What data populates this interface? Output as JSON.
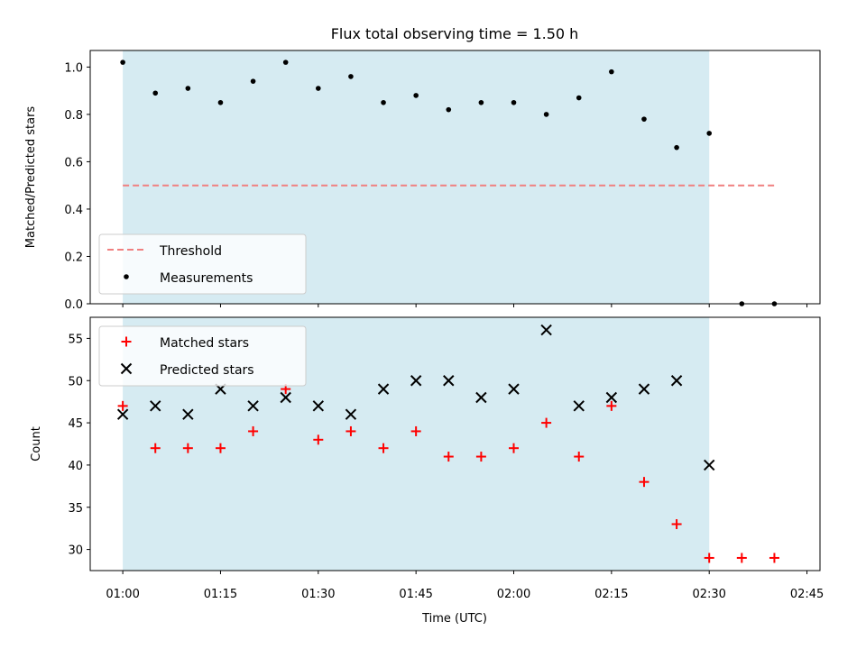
{
  "chart_data": {
    "title": "Flux total observing time = 1.50 h",
    "xlabel": "Time (UTC)",
    "x_ticks": [
      "01:00",
      "01:15",
      "01:30",
      "01:45",
      "02:00",
      "02:15",
      "02:30",
      "02:45"
    ],
    "x_range": [
      "00:55",
      "02:47"
    ],
    "observing_window": [
      "01:00",
      "02:30"
    ],
    "observing_window_color": "#add8e6",
    "panels": [
      {
        "type": "scatter",
        "ylabel": "Matched/Predicted stars",
        "ylim": [
          0.0,
          1.07
        ],
        "y_ticks": [
          "0.0",
          "0.2",
          "0.4",
          "0.6",
          "0.8",
          "1.0"
        ],
        "legend_position": "lower-left",
        "series": [
          {
            "name": "Threshold",
            "style": "dashed-line",
            "color": "#f08080",
            "x": [
              "01:00",
              "02:40"
            ],
            "y": [
              0.5,
              0.5
            ]
          },
          {
            "name": "Measurements",
            "style": "dot",
            "color": "#000000",
            "x": [
              "01:00",
              "01:05",
              "01:10",
              "01:15",
              "01:20",
              "01:25",
              "01:30",
              "01:35",
              "01:40",
              "01:45",
              "01:50",
              "01:55",
              "02:00",
              "02:05",
              "02:10",
              "02:15",
              "02:20",
              "02:25",
              "02:30",
              "02:35",
              "02:40"
            ],
            "y": [
              1.02,
              0.89,
              0.91,
              0.85,
              0.94,
              1.02,
              0.91,
              0.96,
              0.85,
              0.88,
              0.82,
              0.85,
              0.85,
              0.8,
              0.87,
              0.98,
              0.78,
              0.66,
              0.72,
              0.0,
              0.0
            ]
          }
        ]
      },
      {
        "type": "scatter",
        "ylabel": "Count",
        "ylim": [
          27.5,
          57.5
        ],
        "y_ticks": [
          "30",
          "35",
          "40",
          "45",
          "50",
          "55"
        ],
        "legend_position": "upper-left",
        "series": [
          {
            "name": "Matched stars",
            "style": "plus",
            "color": "#ff0000",
            "x": [
              "01:00",
              "01:05",
              "01:10",
              "01:15",
              "01:20",
              "01:25",
              "01:30",
              "01:35",
              "01:40",
              "01:45",
              "01:50",
              "01:55",
              "02:00",
              "02:05",
              "02:10",
              "02:15",
              "02:20",
              "02:25",
              "02:30",
              "02:35",
              "02:40"
            ],
            "y": [
              47,
              42,
              42,
              42,
              44,
              49,
              43,
              44,
              42,
              44,
              41,
              41,
              42,
              45,
              41,
              47,
              38,
              33,
              29,
              29,
              29
            ]
          },
          {
            "name": "Predicted stars",
            "style": "x",
            "color": "#000000",
            "x": [
              "01:00",
              "01:05",
              "01:10",
              "01:15",
              "01:20",
              "01:25",
              "01:30",
              "01:35",
              "01:40",
              "01:45",
              "01:50",
              "01:55",
              "02:00",
              "02:05",
              "02:10",
              "02:15",
              "02:20",
              "02:25",
              "02:30"
            ],
            "y": [
              46,
              47,
              46,
              49,
              47,
              48,
              47,
              46,
              49,
              50,
              50,
              48,
              49,
              56,
              47,
              48,
              49,
              50,
              40
            ]
          }
        ]
      }
    ]
  }
}
